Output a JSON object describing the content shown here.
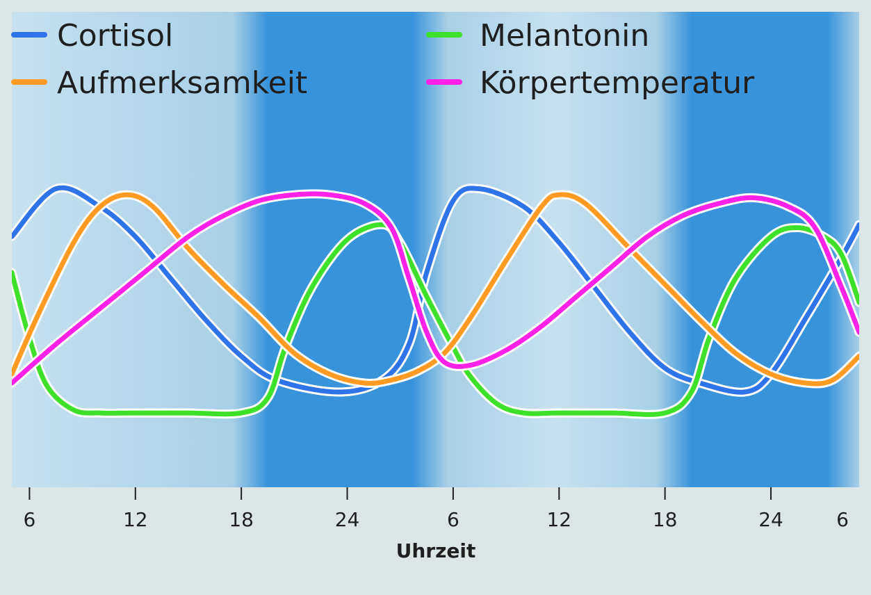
{
  "chart_data": {
    "type": "line",
    "title": "",
    "xlabel": "Uhrzeit",
    "ylabel": "",
    "x_ticks": [
      6,
      12,
      18,
      24,
      30,
      36,
      42,
      48,
      54
    ],
    "x_tick_labels": [
      "6",
      "12",
      "18",
      "24",
      "6",
      "12",
      "18",
      "24",
      "6"
    ],
    "xlim": [
      5,
      53
    ],
    "ylim": [
      0,
      100
    ],
    "grid": false,
    "legend": "top",
    "night_bands": [
      [
        19,
        28.5
      ],
      [
        43,
        52
      ]
    ],
    "series": [
      {
        "name": "Cortisol",
        "color": "#2f73e8",
        "points": [
          [
            5,
            72
          ],
          [
            7.5,
            88
          ],
          [
            10,
            82
          ],
          [
            12,
            72
          ],
          [
            14,
            58
          ],
          [
            16,
            44
          ],
          [
            18,
            32
          ],
          [
            20,
            24
          ],
          [
            23.5,
            20
          ],
          [
            26,
            24
          ],
          [
            27.5,
            36
          ],
          [
            28.5,
            60
          ],
          [
            30,
            84
          ],
          [
            31.5,
            88
          ],
          [
            34,
            82
          ],
          [
            36,
            70
          ],
          [
            38,
            55
          ],
          [
            40,
            40
          ],
          [
            42,
            28
          ],
          [
            44,
            23
          ],
          [
            46.5,
            20
          ],
          [
            48,
            26
          ],
          [
            50,
            45
          ],
          [
            52,
            65
          ],
          [
            53,
            76
          ]
        ]
      },
      {
        "name": "Melantonin",
        "color": "#3ee02a",
        "points": [
          [
            5,
            60
          ],
          [
            6,
            38
          ],
          [
            7,
            22
          ],
          [
            8.5,
            14
          ],
          [
            10,
            13
          ],
          [
            12,
            13
          ],
          [
            15,
            13
          ],
          [
            18,
            13
          ],
          [
            19.5,
            18
          ],
          [
            20.5,
            35
          ],
          [
            22,
            55
          ],
          [
            24,
            71
          ],
          [
            26,
            76
          ],
          [
            27,
            70
          ],
          [
            28.5,
            52
          ],
          [
            30,
            35
          ],
          [
            31,
            25
          ],
          [
            32.5,
            16
          ],
          [
            34,
            13
          ],
          [
            36,
            13
          ],
          [
            39,
            13
          ],
          [
            42,
            13
          ],
          [
            43.5,
            20
          ],
          [
            44.5,
            38
          ],
          [
            46,
            58
          ],
          [
            48,
            72
          ],
          [
            49.5,
            75
          ],
          [
            51,
            72
          ],
          [
            52,
            66
          ],
          [
            53,
            50
          ]
        ]
      },
      {
        "name": "Aufmerksamkeit",
        "color": "#ff9a22",
        "points": [
          [
            5,
            26
          ],
          [
            6.5,
            46
          ],
          [
            8.5,
            70
          ],
          [
            10,
            82
          ],
          [
            11.5,
            86
          ],
          [
            13,
            82
          ],
          [
            15,
            68
          ],
          [
            17,
            56
          ],
          [
            19,
            45
          ],
          [
            21,
            33
          ],
          [
            23,
            26
          ],
          [
            25,
            23
          ],
          [
            26.5,
            24
          ],
          [
            28,
            27
          ],
          [
            29.5,
            33
          ],
          [
            31,
            45
          ],
          [
            33,
            64
          ],
          [
            35,
            82
          ],
          [
            36,
            86
          ],
          [
            37.5,
            83
          ],
          [
            40,
            68
          ],
          [
            42,
            56
          ],
          [
            44,
            44
          ],
          [
            46,
            33
          ],
          [
            48,
            26
          ],
          [
            50,
            23
          ],
          [
            51.5,
            24
          ],
          [
            53,
            32
          ]
        ]
      },
      {
        "name": "Körpertemperatur",
        "color": "#ff22e6",
        "points": [
          [
            5,
            23
          ],
          [
            7.5,
            36
          ],
          [
            10,
            48
          ],
          [
            12.5,
            60
          ],
          [
            15,
            72
          ],
          [
            17,
            79
          ],
          [
            19,
            84
          ],
          [
            21,
            86
          ],
          [
            23,
            86
          ],
          [
            25,
            83
          ],
          [
            26.5,
            75
          ],
          [
            27.5,
            58
          ],
          [
            28.5,
            40
          ],
          [
            29.5,
            30
          ],
          [
            31,
            29
          ],
          [
            33,
            34
          ],
          [
            35,
            42
          ],
          [
            37,
            52
          ],
          [
            39,
            62
          ],
          [
            41,
            72
          ],
          [
            43,
            79
          ],
          [
            45,
            83
          ],
          [
            47,
            85
          ],
          [
            49,
            82
          ],
          [
            50.5,
            75
          ],
          [
            52,
            55
          ],
          [
            53,
            40
          ]
        ]
      }
    ]
  }
}
